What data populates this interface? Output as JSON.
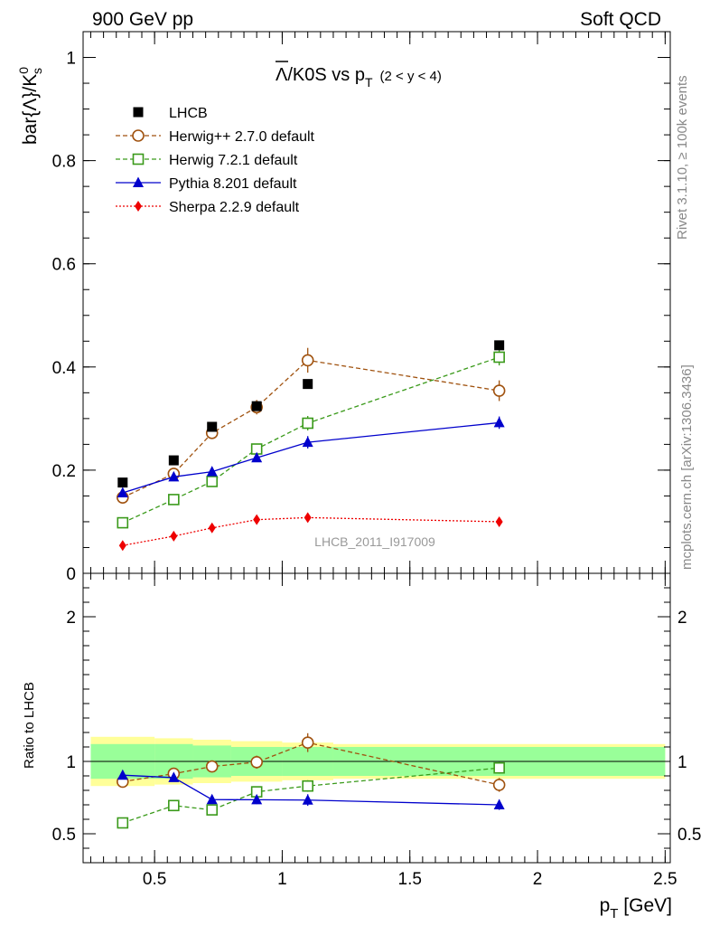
{
  "header": {
    "left": "900 GeV pp",
    "right": "Soft QCD"
  },
  "side_labels": {
    "upper": "Rivet 3.1.10, ≥ 100k events",
    "lower": "mcplots.cern.ch [arXiv:1306.3436]"
  },
  "watermark": "LHCB_2011_I917009",
  "title": {
    "main_prefix": "Λ",
    "main_rest": "/K0S vs p",
    "sub": "T",
    "range": "(2 < y < 4)"
  },
  "ylabel": {
    "main": "bar{Λ}/K",
    "sup": "0",
    "sub": "s"
  },
  "ratio_ylabel": "Ratio to LHCB",
  "xlabel": {
    "main": "p",
    "sub": "T",
    "unit": " [GeV]"
  },
  "colors": {
    "lhcb": "#000000",
    "herwigpp": "#a0520f",
    "herwig7": "#3a9a1a",
    "pythia": "#0000cc",
    "sherpa": "#ee0000",
    "band_outer": "#ffff99",
    "band_inner": "#99ff99"
  },
  "chart_data": {
    "type": "scatter",
    "x": [
      0.375,
      0.575,
      0.725,
      0.9,
      1.1,
      1.85
    ],
    "main_ylim": [
      0,
      1.05
    ],
    "main_yticks": [
      "0",
      "0.2",
      "0.4",
      "0.6",
      "0.8",
      "1"
    ],
    "main_ytick_values": [
      0,
      0.2,
      0.4,
      0.6,
      0.8,
      1.0
    ],
    "ratio_ylim": [
      0.3,
      2.3
    ],
    "ratio_yticks": [
      "0.5",
      "1",
      "2"
    ],
    "ratio_ytick_values": [
      0.5,
      1,
      2
    ],
    "xlim": [
      0.22,
      2.52
    ],
    "xticks": [
      "0.5",
      "1",
      "1.5",
      "2",
      "2.5"
    ],
    "xtick_values": [
      0.5,
      1.0,
      1.5,
      2.0,
      2.5
    ],
    "series": [
      {
        "name": "LHCB",
        "key": "lhcb",
        "marker": "square-filled",
        "line": "none",
        "values": [
          0.176,
          0.219,
          0.284,
          0.324,
          0.367,
          0.442
        ],
        "errors": [
          0.004,
          0.004,
          0.005,
          0.005,
          0.006,
          0.008
        ]
      },
      {
        "name": "Herwig++ 2.7.0 default",
        "key": "herwigpp",
        "marker": "circle-open",
        "line": "dashed",
        "values": [
          0.147,
          0.193,
          0.272,
          0.322,
          0.413,
          0.354
        ],
        "errors": [
          0.005,
          0.007,
          0.01,
          0.014,
          0.024,
          0.02
        ],
        "ratio": [
          0.86,
          0.915,
          0.965,
          0.995,
          1.13,
          0.838
        ],
        "ratio_errors": [
          0.03,
          0.03,
          0.035,
          0.045,
          0.065,
          0.048
        ]
      },
      {
        "name": "Herwig 7.2.1 default",
        "key": "herwig7",
        "marker": "square-open",
        "line": "dashed",
        "values": [
          0.098,
          0.143,
          0.178,
          0.241,
          0.291,
          0.419
        ],
        "errors": [
          0.003,
          0.005,
          0.006,
          0.009,
          0.014,
          0.016
        ],
        "ratio": [
          0.575,
          0.695,
          0.665,
          0.79,
          0.83,
          0.955
        ],
        "ratio_errors": [
          0.015,
          0.022,
          0.025,
          0.03,
          0.04,
          0.04
        ]
      },
      {
        "name": "Pythia 8.201 default",
        "key": "pythia",
        "marker": "triangle-filled",
        "line": "solid",
        "values": [
          0.156,
          0.187,
          0.197,
          0.224,
          0.254,
          0.292
        ],
        "errors": [
          0.004,
          0.005,
          0.006,
          0.008,
          0.012,
          0.012
        ],
        "ratio": [
          0.905,
          0.888,
          0.736,
          0.735,
          0.733,
          0.7
        ],
        "ratio_errors": [
          0.02,
          0.02,
          0.03,
          0.03,
          0.04,
          0.035
        ]
      },
      {
        "name": "Sherpa 2.2.9 default",
        "key": "sherpa",
        "marker": "diamond-filled",
        "line": "dotted",
        "values": [
          0.054,
          0.072,
          0.088,
          0.104,
          0.108,
          0.1
        ],
        "errors": [
          0.002,
          0.002,
          0.003,
          0.003,
          0.004,
          0.004
        ]
      }
    ],
    "ratio_band": {
      "edges": [
        0.25,
        0.5,
        0.65,
        0.8,
        1.0,
        1.2,
        2.5
      ],
      "inner": [
        0.12,
        0.12,
        0.11,
        0.1,
        0.1,
        0.1
      ],
      "outer": [
        0.17,
        0.16,
        0.15,
        0.14,
        0.13,
        0.12
      ]
    }
  }
}
